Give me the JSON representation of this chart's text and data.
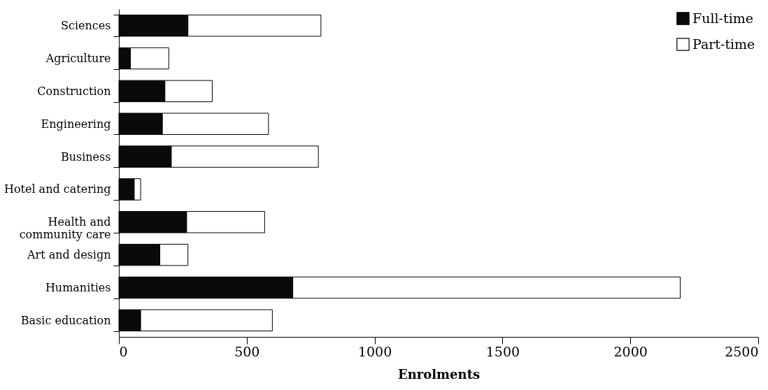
{
  "chart_data": {
    "type": "bar",
    "orientation": "horizontal",
    "stacked": true,
    "xlabel": "Enrolments",
    "categories": [
      "Sciences",
      "Agriculture",
      "Construction",
      "Engineering",
      "Business",
      "Hotel and catering",
      "Health and\ncommunity care",
      "Art and design",
      "Humanities",
      "Basic education"
    ],
    "series": [
      {
        "name": "Full-time",
        "color": "#0a0a0a",
        "values": [
          270,
          45,
          180,
          170,
          205,
          60,
          265,
          160,
          680,
          85
        ]
      },
      {
        "name": "Part-time",
        "color": "#ffffff",
        "values": [
          520,
          150,
          185,
          415,
          575,
          25,
          305,
          110,
          1515,
          515
        ]
      }
    ],
    "xlim": [
      0,
      2500
    ],
    "xticks": [
      0,
      500,
      1000,
      1500,
      2000,
      2500
    ],
    "grid": false,
    "legend": "top right"
  }
}
